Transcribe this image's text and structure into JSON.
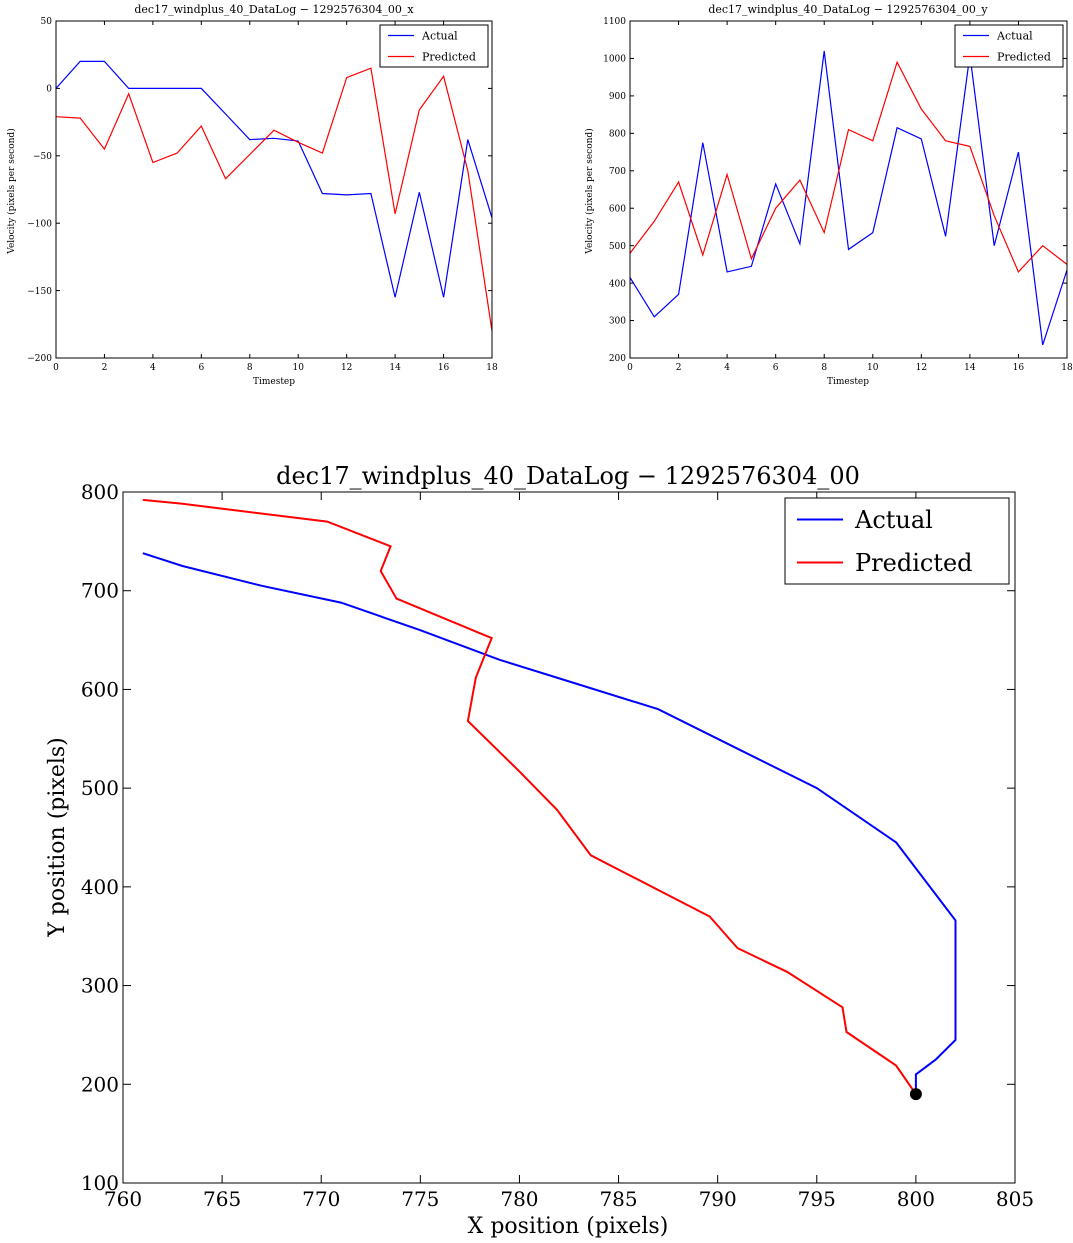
{
  "chart_data": [
    {
      "type": "line",
      "title": "dec17_windplus_40_DataLog − 1292576304_00_x",
      "xlabel": "Timestep",
      "ylabel": "Velocity (pixels per second)",
      "xlim": [
        0,
        18
      ],
      "ylim": [
        -200,
        50
      ],
      "xticks": [
        "0",
        "2",
        "4",
        "6",
        "8",
        "10",
        "12",
        "14",
        "16",
        "18"
      ],
      "yticks": [
        "50",
        "0",
        "−50",
        "−100",
        "−150",
        "−200"
      ],
      "legend": "top-right",
      "x": [
        0,
        1,
        2,
        3,
        4,
        5,
        6,
        7,
        8,
        9,
        10,
        11,
        12,
        13,
        14,
        15,
        16,
        17,
        18
      ],
      "series": [
        {
          "name": "Actual",
          "color": "#0000ff",
          "values": [
            0,
            20,
            20,
            0,
            0,
            0,
            0,
            -19,
            -38,
            -37,
            -39,
            -78,
            -79,
            -78,
            -155,
            -77,
            -155,
            -38,
            -96
          ]
        },
        {
          "name": "Predicted",
          "color": "#ff0000",
          "values": [
            -21,
            -22,
            -45,
            -4,
            -55,
            -48,
            -28,
            -67,
            -49,
            -31,
            -40,
            -48,
            8,
            15,
            -93,
            -16,
            9,
            -61,
            -180
          ]
        }
      ]
    },
    {
      "type": "line",
      "title": "dec17_windplus_40_DataLog − 1292576304_00_y",
      "xlabel": "Timestep",
      "ylabel": "Velocity (pixels per second)",
      "xlim": [
        0,
        18
      ],
      "ylim": [
        200,
        1100
      ],
      "xticks": [
        "0",
        "2",
        "4",
        "6",
        "8",
        "10",
        "12",
        "14",
        "16",
        "18"
      ],
      "yticks": [
        "1100",
        "1000",
        "900",
        "800",
        "700",
        "600",
        "500",
        "400",
        "300",
        "200"
      ],
      "legend": "top-right",
      "x": [
        0,
        1,
        2,
        3,
        4,
        5,
        6,
        7,
        8,
        9,
        10,
        11,
        12,
        13,
        14,
        15,
        16,
        17,
        18
      ],
      "series": [
        {
          "name": "Actual",
          "color": "#0000ff",
          "values": [
            415,
            310,
            370,
            775,
            430,
            445,
            665,
            505,
            1020,
            490,
            535,
            815,
            785,
            525,
            1010,
            500,
            750,
            235,
            435
          ]
        },
        {
          "name": "Predicted",
          "color": "#ff0000",
          "values": [
            480,
            565,
            670,
            475,
            690,
            465,
            600,
            675,
            535,
            810,
            780,
            990,
            865,
            780,
            765,
            580,
            430,
            500,
            450
          ]
        }
      ]
    },
    {
      "type": "line",
      "title": "dec17_windplus_40_DataLog − 1292576304_00",
      "xlabel": "X position (pixels)",
      "ylabel": "Y position (pixels)",
      "xlim": [
        760,
        805
      ],
      "ylim": [
        100,
        800
      ],
      "xticks": [
        "760",
        "765",
        "770",
        "775",
        "780",
        "785",
        "790",
        "795",
        "800",
        "805"
      ],
      "yticks": [
        "800",
        "700",
        "600",
        "500",
        "400",
        "300",
        "200",
        "100"
      ],
      "legend": "top-right",
      "series": [
        {
          "name": "Actual",
          "color": "#0000ff",
          "x": [
            800,
            800,
            801,
            802,
            802,
            799,
            795,
            791,
            787,
            783,
            779,
            775,
            771,
            767,
            763,
            761
          ],
          "y": [
            190,
            210,
            225,
            245,
            366,
            445,
            500,
            540,
            580,
            605,
            630,
            660,
            688,
            705,
            725,
            738
          ]
        },
        {
          "name": "Predicted",
          "color": "#ff0000",
          "x": [
            800,
            799,
            796.5,
            796.3,
            793.5,
            791,
            789.6,
            783.6,
            781.9,
            780,
            777.4,
            777.8,
            778.6,
            773.8,
            773,
            773.5,
            770.3,
            763,
            761
          ],
          "y": [
            190,
            219,
            253,
            278,
            314,
            338,
            370,
            432,
            478,
            517,
            568,
            612,
            652,
            692,
            720,
            745,
            770,
            788,
            792
          ]
        }
      ],
      "marker": {
        "x": 800,
        "y": 190,
        "color": "#000000"
      }
    }
  ]
}
